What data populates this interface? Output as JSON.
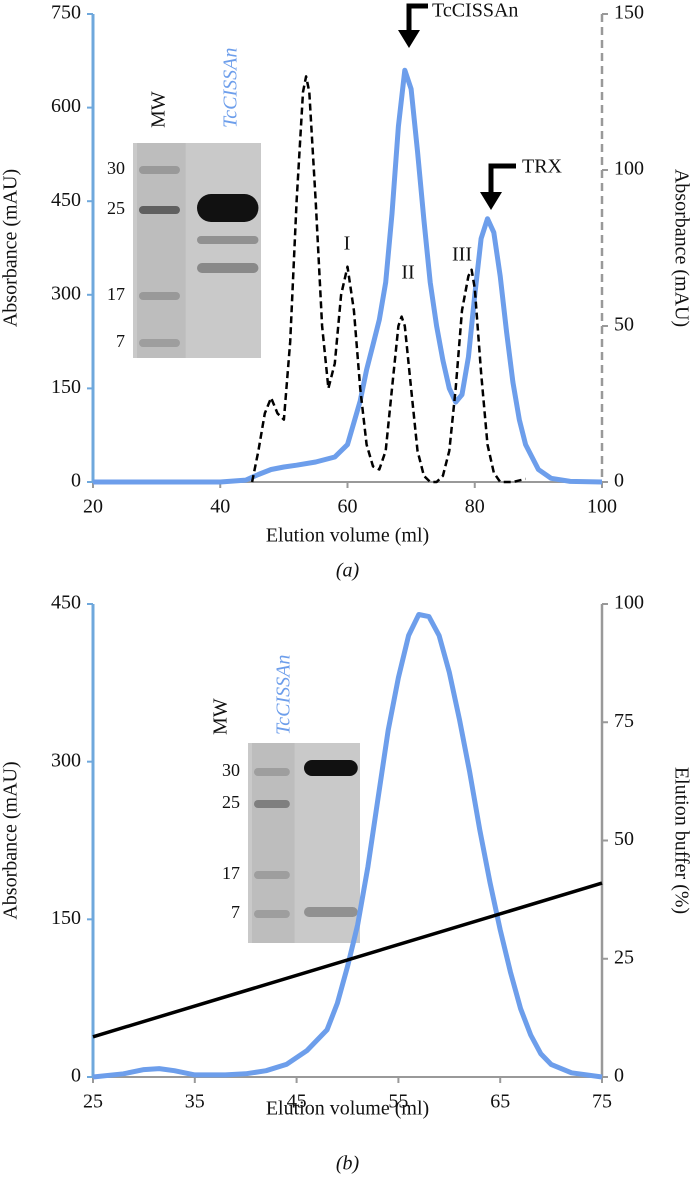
{
  "chart_data": [
    {
      "type": "line",
      "caption": "(a)",
      "x_label": "Elution volume (ml)",
      "y_label": "Absorbance (mAU)",
      "y2_label": "Absorbance (mAU)",
      "xlim": [
        20,
        100
      ],
      "xticks": [
        20,
        40,
        60,
        80,
        100
      ],
      "ylim": [
        0,
        750
      ],
      "yticks": [
        0,
        150,
        300,
        450,
        600,
        750
      ],
      "y2lim": [
        0,
        150
      ],
      "y2ticks": [
        0,
        50,
        100,
        150
      ],
      "left_axis_color": "#6fa8dc",
      "right_axis_color": "#999999",
      "right_axis_dashed": true,
      "series": [
        {
          "color": "#6d9eeb",
          "dashed": false,
          "x": [
            20,
            40,
            44,
            46,
            48,
            50,
            52,
            55,
            58,
            60,
            62,
            63,
            64,
            65,
            66,
            67,
            68,
            69,
            70,
            71,
            72,
            73,
            74,
            75,
            76,
            77,
            78,
            79,
            80,
            81,
            82,
            83,
            84,
            85,
            86,
            87,
            88,
            90,
            92,
            95,
            100
          ],
          "values": [
            0,
            0,
            3,
            12,
            20,
            24,
            27,
            32,
            40,
            60,
            130,
            180,
            220,
            260,
            320,
            430,
            570,
            660,
            630,
            530,
            420,
            320,
            250,
            195,
            150,
            128,
            140,
            200,
            300,
            390,
            422,
            400,
            330,
            240,
            160,
            100,
            60,
            20,
            6,
            1,
            0
          ]
        },
        {
          "color": "#000000",
          "dashed": true,
          "axis": "y2",
          "x": [
            45,
            46,
            47,
            48,
            49,
            50,
            51,
            52,
            53,
            53.5,
            54,
            55,
            56,
            57,
            58,
            59,
            60,
            61,
            62,
            63,
            64,
            65,
            66,
            67,
            68,
            68.5,
            69,
            70,
            71,
            72,
            73,
            74,
            75,
            76,
            77,
            78,
            79,
            79.5,
            80,
            81,
            82,
            83,
            84,
            86,
            88
          ],
          "values": [
            0,
            10,
            22,
            27,
            22,
            20,
            45,
            90,
            125,
            130,
            125,
            90,
            50,
            30,
            38,
            60,
            69,
            55,
            30,
            12,
            5,
            4,
            10,
            30,
            50,
            53,
            50,
            30,
            10,
            2,
            0,
            0,
            2,
            10,
            30,
            55,
            66,
            68,
            62,
            35,
            12,
            3,
            0,
            0,
            1
          ]
        }
      ],
      "annotations": [
        "TcCISSAn",
        "TRX",
        "I",
        "II",
        "III"
      ],
      "inset": {
        "lane_labels": [
          "MW",
          "TcCISSAn"
        ],
        "markers": [
          30,
          25,
          17,
          7
        ]
      }
    },
    {
      "type": "line",
      "caption": "(b)",
      "x_label": "Elution volume (ml)",
      "y_label": "Absorbance (mAU)",
      "y2_label": "Elution buffer (%)",
      "xlim": [
        25,
        75
      ],
      "xticks": [
        25,
        35,
        45,
        55,
        65,
        75
      ],
      "ylim": [
        0,
        450
      ],
      "yticks": [
        0,
        150,
        300,
        450
      ],
      "y2lim": [
        0,
        100
      ],
      "y2ticks": [
        0,
        25,
        50,
        75,
        100
      ],
      "left_axis_color": "#6fa8dc",
      "right_axis_color": "#999999",
      "right_axis_dashed": false,
      "series": [
        {
          "color": "#6d9eeb",
          "dashed": false,
          "x": [
            25,
            28,
            30,
            31.5,
            33,
            35,
            38,
            40,
            42,
            44,
            46,
            48,
            49,
            50,
            51,
            52,
            53,
            54,
            55,
            56,
            57,
            58,
            59,
            60,
            61,
            62,
            63,
            64,
            65,
            66,
            67,
            68,
            69,
            70,
            72,
            75
          ],
          "values": [
            0,
            3,
            7,
            8,
            6,
            2,
            2,
            3,
            6,
            12,
            25,
            45,
            70,
            105,
            145,
            200,
            265,
            330,
            380,
            420,
            440,
            438,
            420,
            385,
            340,
            290,
            235,
            185,
            140,
            100,
            65,
            40,
            22,
            12,
            4,
            0
          ]
        },
        {
          "color": "#000000",
          "dashed": false,
          "axis": "y2",
          "x": [
            25,
            75
          ],
          "values": [
            8.5,
            41
          ]
        }
      ],
      "inset": {
        "lane_labels": [
          "MW",
          "TcCISSAn"
        ],
        "markers": [
          30,
          25,
          17,
          7
        ]
      }
    }
  ]
}
